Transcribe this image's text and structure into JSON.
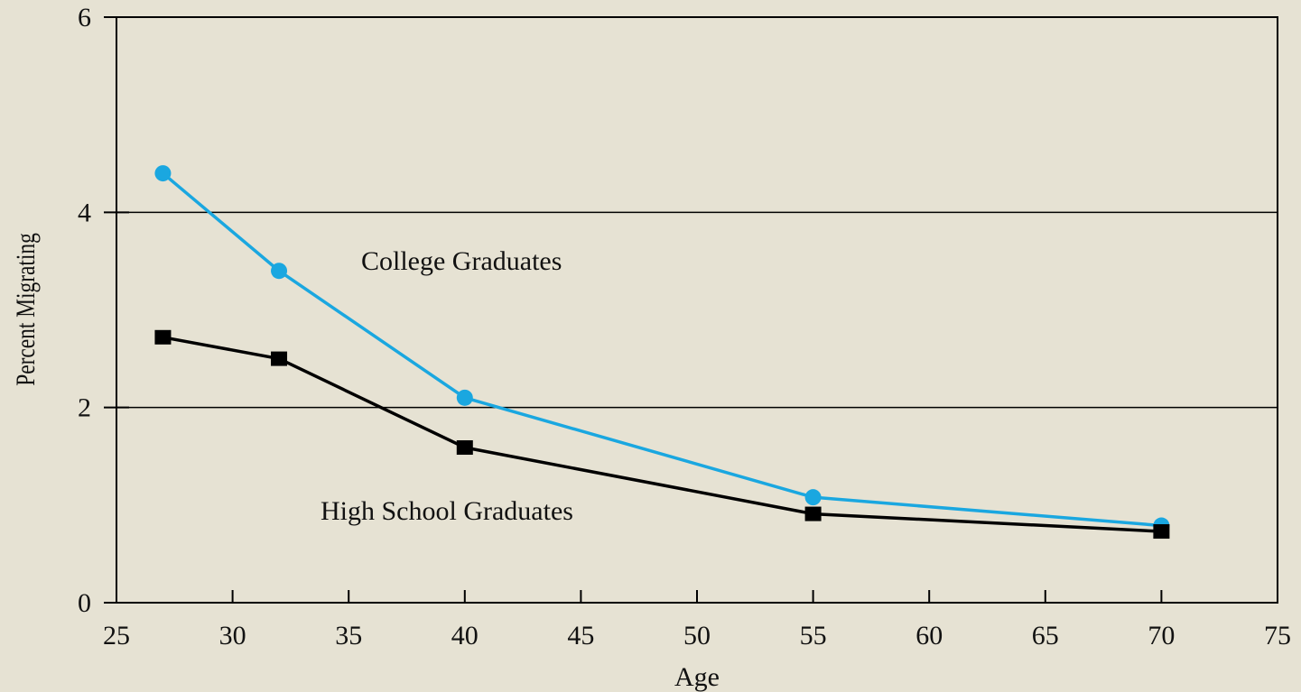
{
  "chart_data": {
    "type": "line",
    "xlabel": "Age",
    "ylabel": "Percent Migrating",
    "xlim": [
      25,
      75
    ],
    "ylim": [
      0,
      6
    ],
    "x_ticks": [
      25,
      30,
      35,
      40,
      45,
      50,
      55,
      60,
      65,
      70,
      75
    ],
    "y_ticks": [
      0,
      2,
      4,
      6
    ],
    "grid": {
      "horizontal_lines_at": [
        2,
        4
      ],
      "vertical": false
    },
    "series": [
      {
        "name": "College Graduates",
        "color": "#1aa7e0",
        "marker": "circle",
        "x": [
          27,
          32,
          40,
          55,
          70
        ],
        "y": [
          4.4,
          3.4,
          2.1,
          1.08,
          0.79
        ]
      },
      {
        "name": "High School Graduates",
        "color": "#000000",
        "marker": "square",
        "x": [
          27,
          32,
          40,
          55,
          70
        ],
        "y": [
          2.72,
          2.5,
          1.59,
          0.91,
          0.73
        ]
      }
    ]
  }
}
